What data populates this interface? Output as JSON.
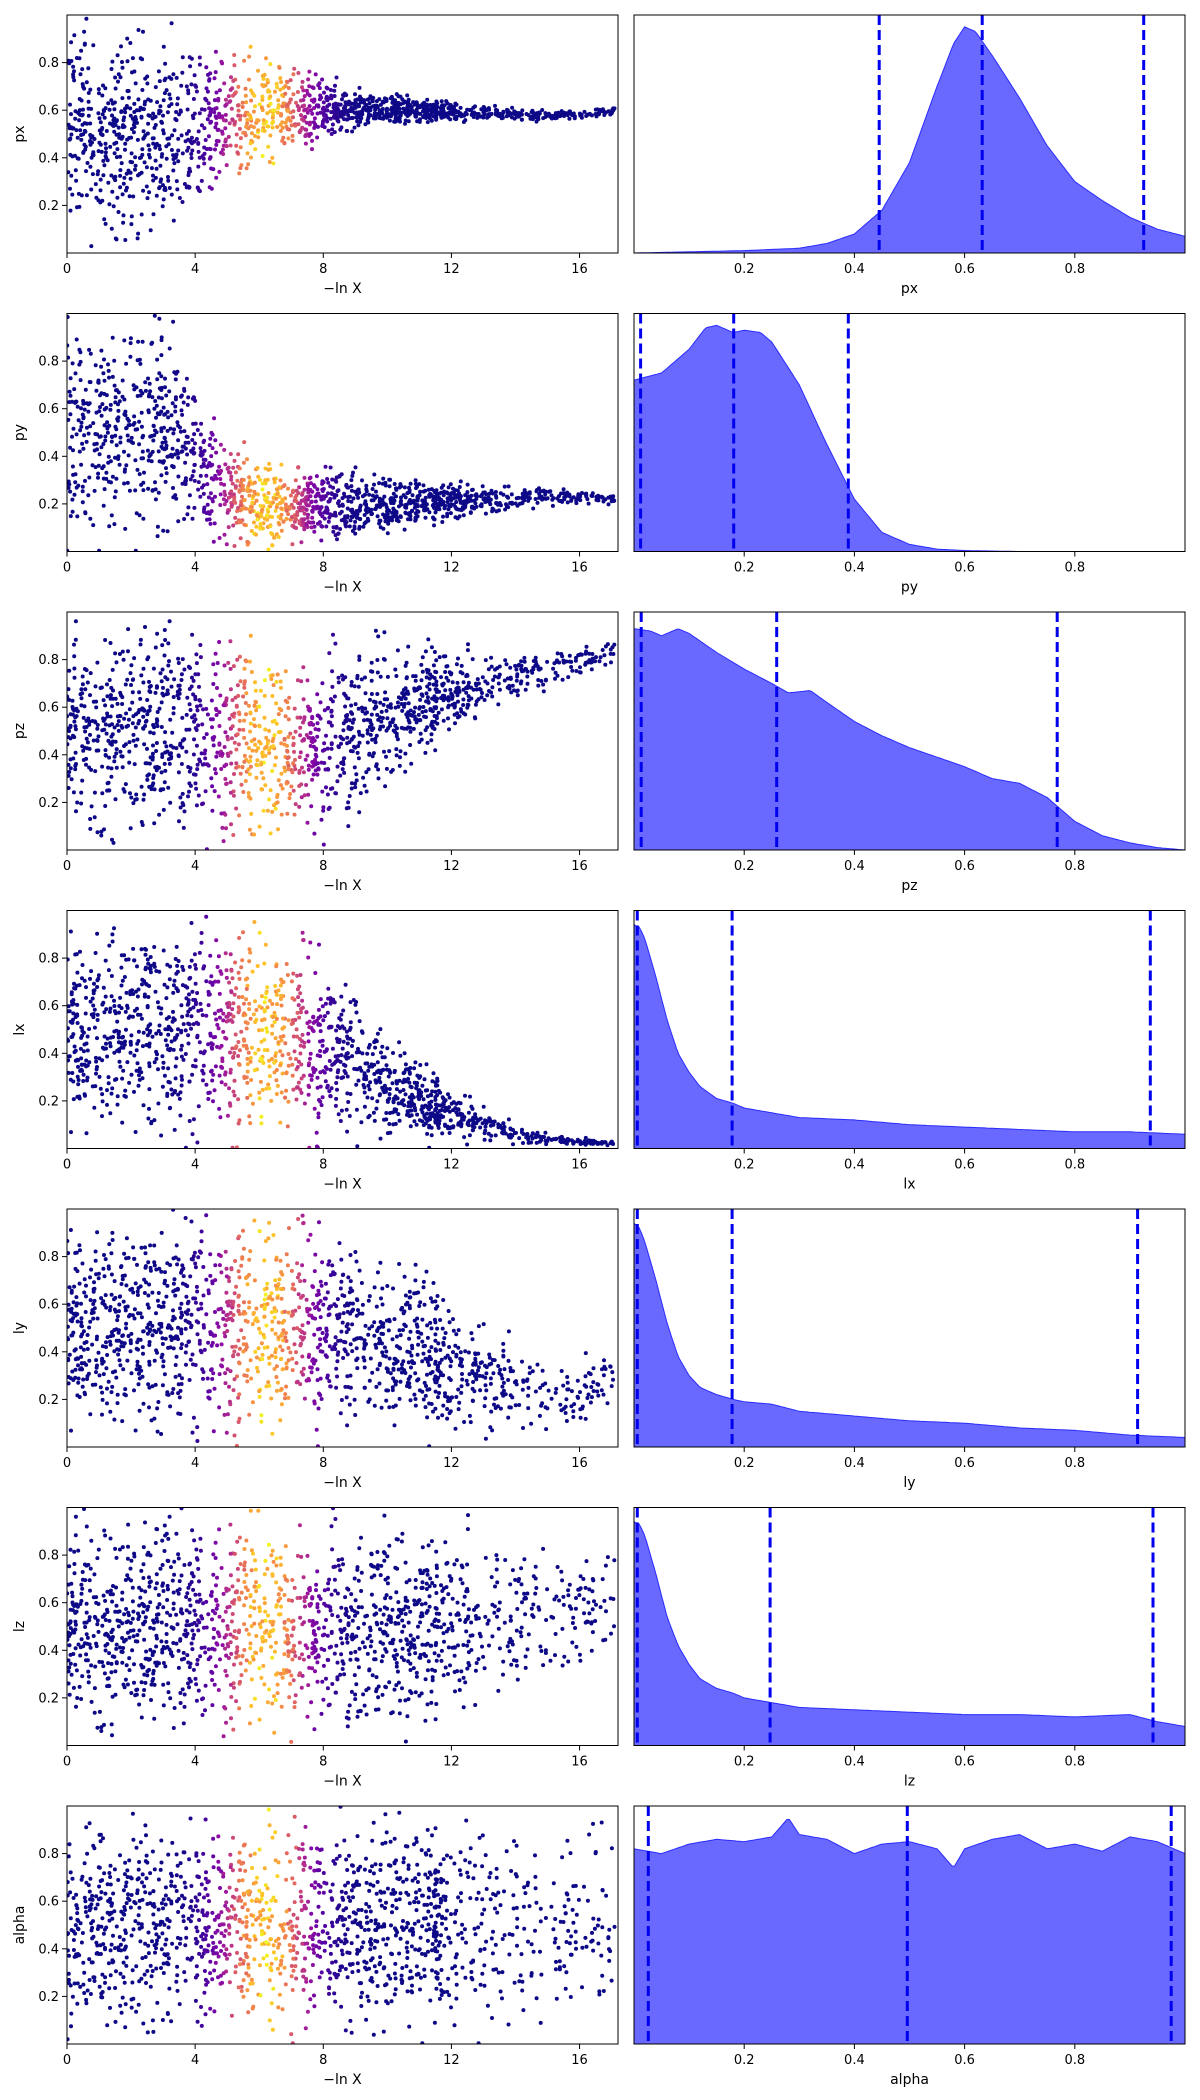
{
  "figure": {
    "scatter_xlabel": "−ln X",
    "colormap": "plasma",
    "marker_color_low": "#0d0887",
    "kde_fill_color": "#6666ff",
    "kde_edge_color": "#2b2bff",
    "quantile_line_color": "#0000ee"
  },
  "chart_data": [
    {
      "type": "scatter",
      "param": "px",
      "ylabel": "px",
      "xlabel": "−ln X",
      "xlim": [
        0,
        17.2
      ],
      "ylim": [
        0,
        1
      ],
      "xticks": [
        0,
        4,
        8,
        12,
        16
      ],
      "yticks": [
        0.2,
        0.4,
        0.6,
        0.8
      ],
      "color_by": "posterior weight (plasma colormap, peak near −ln X ≈ 6.2)",
      "points_shape": {
        "x": [
          0,
          3,
          4,
          5,
          6,
          7,
          8,
          9,
          10,
          11,
          12,
          13,
          14,
          15,
          16,
          17
        ],
        "center": [
          0.5,
          0.5,
          0.52,
          0.58,
          0.6,
          0.6,
          0.6,
          0.6,
          0.6,
          0.6,
          0.59,
          0.59,
          0.58,
          0.58,
          0.58,
          0.6
        ],
        "halfwidth": [
          0.5,
          0.5,
          0.42,
          0.3,
          0.28,
          0.22,
          0.16,
          0.1,
          0.07,
          0.06,
          0.05,
          0.04,
          0.03,
          0.025,
          0.02,
          0.02
        ]
      }
    },
    {
      "type": "area",
      "param": "px",
      "xlabel": "px",
      "xlim": [
        0,
        1
      ],
      "xticks": [
        0.2,
        0.4,
        0.6,
        0.8
      ],
      "x": [
        0,
        0.1,
        0.2,
        0.3,
        0.35,
        0.4,
        0.45,
        0.5,
        0.55,
        0.58,
        0.6,
        0.62,
        0.65,
        0.7,
        0.75,
        0.8,
        0.85,
        0.9,
        0.95,
        1.0
      ],
      "density": [
        0,
        0.005,
        0.01,
        0.02,
        0.04,
        0.08,
        0.18,
        0.38,
        0.7,
        0.88,
        0.95,
        0.93,
        0.83,
        0.65,
        0.45,
        0.3,
        0.22,
        0.15,
        0.1,
        0.07
      ],
      "quantiles": [
        0.445,
        0.632,
        0.925
      ]
    },
    {
      "type": "scatter",
      "param": "py",
      "ylabel": "py",
      "xlabel": "−ln X",
      "xlim": [
        0,
        17.2
      ],
      "ylim": [
        0,
        1
      ],
      "xticks": [
        0,
        4,
        8,
        12,
        16
      ],
      "yticks": [
        0.2,
        0.4,
        0.6,
        0.8
      ],
      "color_by": "posterior weight (plasma colormap, peak near −ln X ≈ 6.2)",
      "points_shape": {
        "x": [
          0,
          3,
          4,
          5,
          6,
          7,
          8,
          9,
          10,
          11,
          12,
          13,
          14,
          15,
          16,
          17
        ],
        "center": [
          0.5,
          0.5,
          0.4,
          0.25,
          0.2,
          0.19,
          0.19,
          0.19,
          0.19,
          0.2,
          0.21,
          0.22,
          0.22,
          0.23,
          0.23,
          0.22
        ],
        "halfwidth": [
          0.5,
          0.5,
          0.4,
          0.25,
          0.2,
          0.18,
          0.17,
          0.16,
          0.14,
          0.11,
          0.09,
          0.07,
          0.06,
          0.05,
          0.04,
          0.03
        ]
      }
    },
    {
      "type": "area",
      "param": "py",
      "xlabel": "py",
      "xlim": [
        0,
        1
      ],
      "xticks": [
        0.2,
        0.4,
        0.6,
        0.8
      ],
      "x": [
        0,
        0.05,
        0.1,
        0.13,
        0.15,
        0.18,
        0.2,
        0.23,
        0.25,
        0.3,
        0.35,
        0.4,
        0.45,
        0.5,
        0.55,
        0.6,
        0.7,
        1.0
      ],
      "density": [
        0.72,
        0.75,
        0.85,
        0.94,
        0.95,
        0.92,
        0.93,
        0.92,
        0.88,
        0.7,
        0.45,
        0.22,
        0.08,
        0.03,
        0.01,
        0.004,
        0.0,
        0.0
      ],
      "quantiles": [
        0.012,
        0.181,
        0.389
      ]
    },
    {
      "type": "scatter",
      "param": "pz",
      "ylabel": "pz",
      "xlabel": "−ln X",
      "xlim": [
        0,
        17.2
      ],
      "ylim": [
        0,
        1
      ],
      "xticks": [
        0,
        4,
        8,
        12,
        16
      ],
      "yticks": [
        0.2,
        0.4,
        0.6,
        0.8
      ],
      "color_by": "posterior weight (plasma colormap, peak near −ln X ≈ 6.2)",
      "points_shape": {
        "x": [
          0,
          4,
          6,
          8,
          9,
          10,
          11,
          12,
          13,
          14,
          15,
          16,
          17
        ],
        "center": [
          0.5,
          0.5,
          0.45,
          0.45,
          0.52,
          0.58,
          0.62,
          0.65,
          0.7,
          0.73,
          0.76,
          0.8,
          0.82
        ],
        "halfwidth": [
          0.5,
          0.5,
          0.45,
          0.44,
          0.42,
          0.36,
          0.28,
          0.22,
          0.16,
          0.12,
          0.1,
          0.08,
          0.06
        ]
      }
    },
    {
      "type": "area",
      "param": "pz",
      "xlabel": "pz",
      "xlim": [
        0,
        1
      ],
      "xticks": [
        0.2,
        0.4,
        0.6,
        0.8
      ],
      "x": [
        0,
        0.03,
        0.05,
        0.08,
        0.1,
        0.15,
        0.2,
        0.25,
        0.28,
        0.32,
        0.35,
        0.4,
        0.45,
        0.5,
        0.55,
        0.6,
        0.65,
        0.7,
        0.75,
        0.8,
        0.85,
        0.9,
        0.95,
        1.0
      ],
      "density": [
        0.93,
        0.92,
        0.9,
        0.93,
        0.91,
        0.83,
        0.76,
        0.7,
        0.66,
        0.67,
        0.62,
        0.54,
        0.48,
        0.43,
        0.39,
        0.35,
        0.3,
        0.28,
        0.22,
        0.12,
        0.06,
        0.03,
        0.01,
        0.0
      ],
      "quantiles": [
        0.013,
        0.259,
        0.768
      ]
    },
    {
      "type": "scatter",
      "param": "lx",
      "ylabel": "lx",
      "xlabel": "−ln X",
      "xlim": [
        0,
        17.2
      ],
      "ylim": [
        0,
        1
      ],
      "xticks": [
        0,
        4,
        8,
        12,
        16
      ],
      "yticks": [
        0.2,
        0.4,
        0.6,
        0.8
      ],
      "color_by": "posterior weight (plasma colormap, peak near −ln X ≈ 6.2)",
      "points_shape": {
        "x": [
          0,
          6,
          8,
          9,
          10,
          11,
          12,
          13,
          14,
          15,
          16,
          17
        ],
        "center": [
          0.5,
          0.5,
          0.45,
          0.35,
          0.28,
          0.2,
          0.14,
          0.1,
          0.06,
          0.04,
          0.03,
          0.02
        ],
        "halfwidth": [
          0.5,
          0.5,
          0.45,
          0.35,
          0.28,
          0.2,
          0.13,
          0.09,
          0.05,
          0.03,
          0.02,
          0.01
        ]
      }
    },
    {
      "type": "area",
      "param": "lx",
      "xlabel": "lx",
      "xlim": [
        0,
        1
      ],
      "xticks": [
        0.2,
        0.4,
        0.6,
        0.8
      ],
      "x": [
        0,
        0.01,
        0.02,
        0.04,
        0.06,
        0.08,
        0.1,
        0.12,
        0.15,
        0.18,
        0.2,
        0.25,
        0.3,
        0.4,
        0.5,
        0.6,
        0.7,
        0.8,
        0.9,
        1.0
      ],
      "density": [
        0.94,
        0.93,
        0.88,
        0.72,
        0.54,
        0.4,
        0.32,
        0.26,
        0.21,
        0.19,
        0.17,
        0.15,
        0.13,
        0.12,
        0.1,
        0.09,
        0.08,
        0.07,
        0.07,
        0.06
      ],
      "quantiles": [
        0.006,
        0.178,
        0.937
      ]
    },
    {
      "type": "scatter",
      "param": "ly",
      "ylabel": "ly",
      "xlabel": "−ln X",
      "xlim": [
        0,
        17.2
      ],
      "ylim": [
        0,
        1
      ],
      "xticks": [
        0,
        4,
        8,
        12,
        16
      ],
      "yticks": [
        0.2,
        0.4,
        0.6,
        0.8
      ],
      "color_by": "posterior weight (plasma colormap, peak near −ln X ≈ 6.2)",
      "points_shape": {
        "x": [
          0,
          6,
          8,
          10,
          11,
          12,
          13,
          14,
          15,
          16,
          17
        ],
        "center": [
          0.5,
          0.5,
          0.5,
          0.45,
          0.4,
          0.34,
          0.28,
          0.25,
          0.22,
          0.22,
          0.3
        ],
        "halfwidth": [
          0.5,
          0.5,
          0.5,
          0.45,
          0.4,
          0.34,
          0.28,
          0.24,
          0.2,
          0.18,
          0.15
        ]
      }
    },
    {
      "type": "area",
      "param": "ly",
      "xlabel": "ly",
      "xlim": [
        0,
        1
      ],
      "xticks": [
        0.2,
        0.4,
        0.6,
        0.8
      ],
      "x": [
        0,
        0.01,
        0.02,
        0.04,
        0.06,
        0.08,
        0.1,
        0.12,
        0.15,
        0.18,
        0.2,
        0.25,
        0.3,
        0.4,
        0.5,
        0.6,
        0.7,
        0.8,
        0.9,
        1.0
      ],
      "density": [
        0.94,
        0.92,
        0.86,
        0.7,
        0.52,
        0.38,
        0.3,
        0.25,
        0.22,
        0.2,
        0.19,
        0.18,
        0.15,
        0.13,
        0.11,
        0.1,
        0.08,
        0.07,
        0.05,
        0.04
      ],
      "quantiles": [
        0.006,
        0.178,
        0.914
      ]
    },
    {
      "type": "scatter",
      "param": "lz",
      "ylabel": "lz",
      "xlabel": "−ln X",
      "xlim": [
        0,
        17.2
      ],
      "ylim": [
        0,
        1
      ],
      "xticks": [
        0,
        4,
        8,
        12,
        16
      ],
      "yticks": [
        0.2,
        0.4,
        0.6,
        0.8
      ],
      "color_by": "posterior weight (plasma colormap, peak near −ln X ≈ 6.2)",
      "points_shape": {
        "x": [
          0,
          6,
          8,
          10,
          12,
          13,
          14,
          15,
          16,
          17
        ],
        "center": [
          0.5,
          0.5,
          0.5,
          0.5,
          0.5,
          0.52,
          0.55,
          0.55,
          0.58,
          0.6
        ],
        "halfwidth": [
          0.5,
          0.5,
          0.5,
          0.5,
          0.48,
          0.44,
          0.4,
          0.35,
          0.3,
          0.25
        ]
      }
    },
    {
      "type": "area",
      "param": "lz",
      "xlabel": "lz",
      "xlim": [
        0,
        1
      ],
      "xticks": [
        0.2,
        0.4,
        0.6,
        0.8
      ],
      "x": [
        0,
        0.01,
        0.02,
        0.04,
        0.06,
        0.08,
        0.1,
        0.12,
        0.15,
        0.18,
        0.2,
        0.25,
        0.3,
        0.4,
        0.5,
        0.6,
        0.7,
        0.8,
        0.9,
        0.95,
        1.0
      ],
      "density": [
        0.94,
        0.93,
        0.88,
        0.72,
        0.54,
        0.42,
        0.34,
        0.28,
        0.24,
        0.22,
        0.2,
        0.18,
        0.16,
        0.15,
        0.14,
        0.13,
        0.13,
        0.12,
        0.13,
        0.1,
        0.08
      ],
      "quantiles": [
        0.006,
        0.247,
        0.942
      ]
    },
    {
      "type": "scatter",
      "param": "alpha",
      "ylabel": "alpha",
      "xlabel": "−ln X",
      "xlim": [
        0,
        17.2
      ],
      "ylim": [
        0,
        1
      ],
      "xticks": [
        0,
        4,
        8,
        12,
        16
      ],
      "yticks": [
        0.2,
        0.4,
        0.6,
        0.8
      ],
      "color_by": "posterior weight (plasma colormap, peak near −ln X ≈ 6.2)",
      "points_shape": {
        "x": [
          0,
          17
        ],
        "center": [
          0.5,
          0.5
        ],
        "halfwidth": [
          0.5,
          0.5
        ]
      }
    },
    {
      "type": "area",
      "param": "alpha",
      "xlabel": "alpha",
      "xlim": [
        0,
        1
      ],
      "xticks": [
        0.2,
        0.4,
        0.6,
        0.8
      ],
      "x": [
        0,
        0.05,
        0.1,
        0.15,
        0.2,
        0.25,
        0.28,
        0.3,
        0.35,
        0.4,
        0.45,
        0.5,
        0.55,
        0.58,
        0.6,
        0.65,
        0.7,
        0.75,
        0.8,
        0.85,
        0.9,
        0.95,
        1.0
      ],
      "density": [
        0.82,
        0.8,
        0.84,
        0.86,
        0.85,
        0.87,
        0.95,
        0.88,
        0.86,
        0.8,
        0.84,
        0.85,
        0.82,
        0.74,
        0.82,
        0.86,
        0.88,
        0.82,
        0.84,
        0.81,
        0.87,
        0.85,
        0.8
      ],
      "quantiles": [
        0.026,
        0.496,
        0.975
      ]
    }
  ]
}
